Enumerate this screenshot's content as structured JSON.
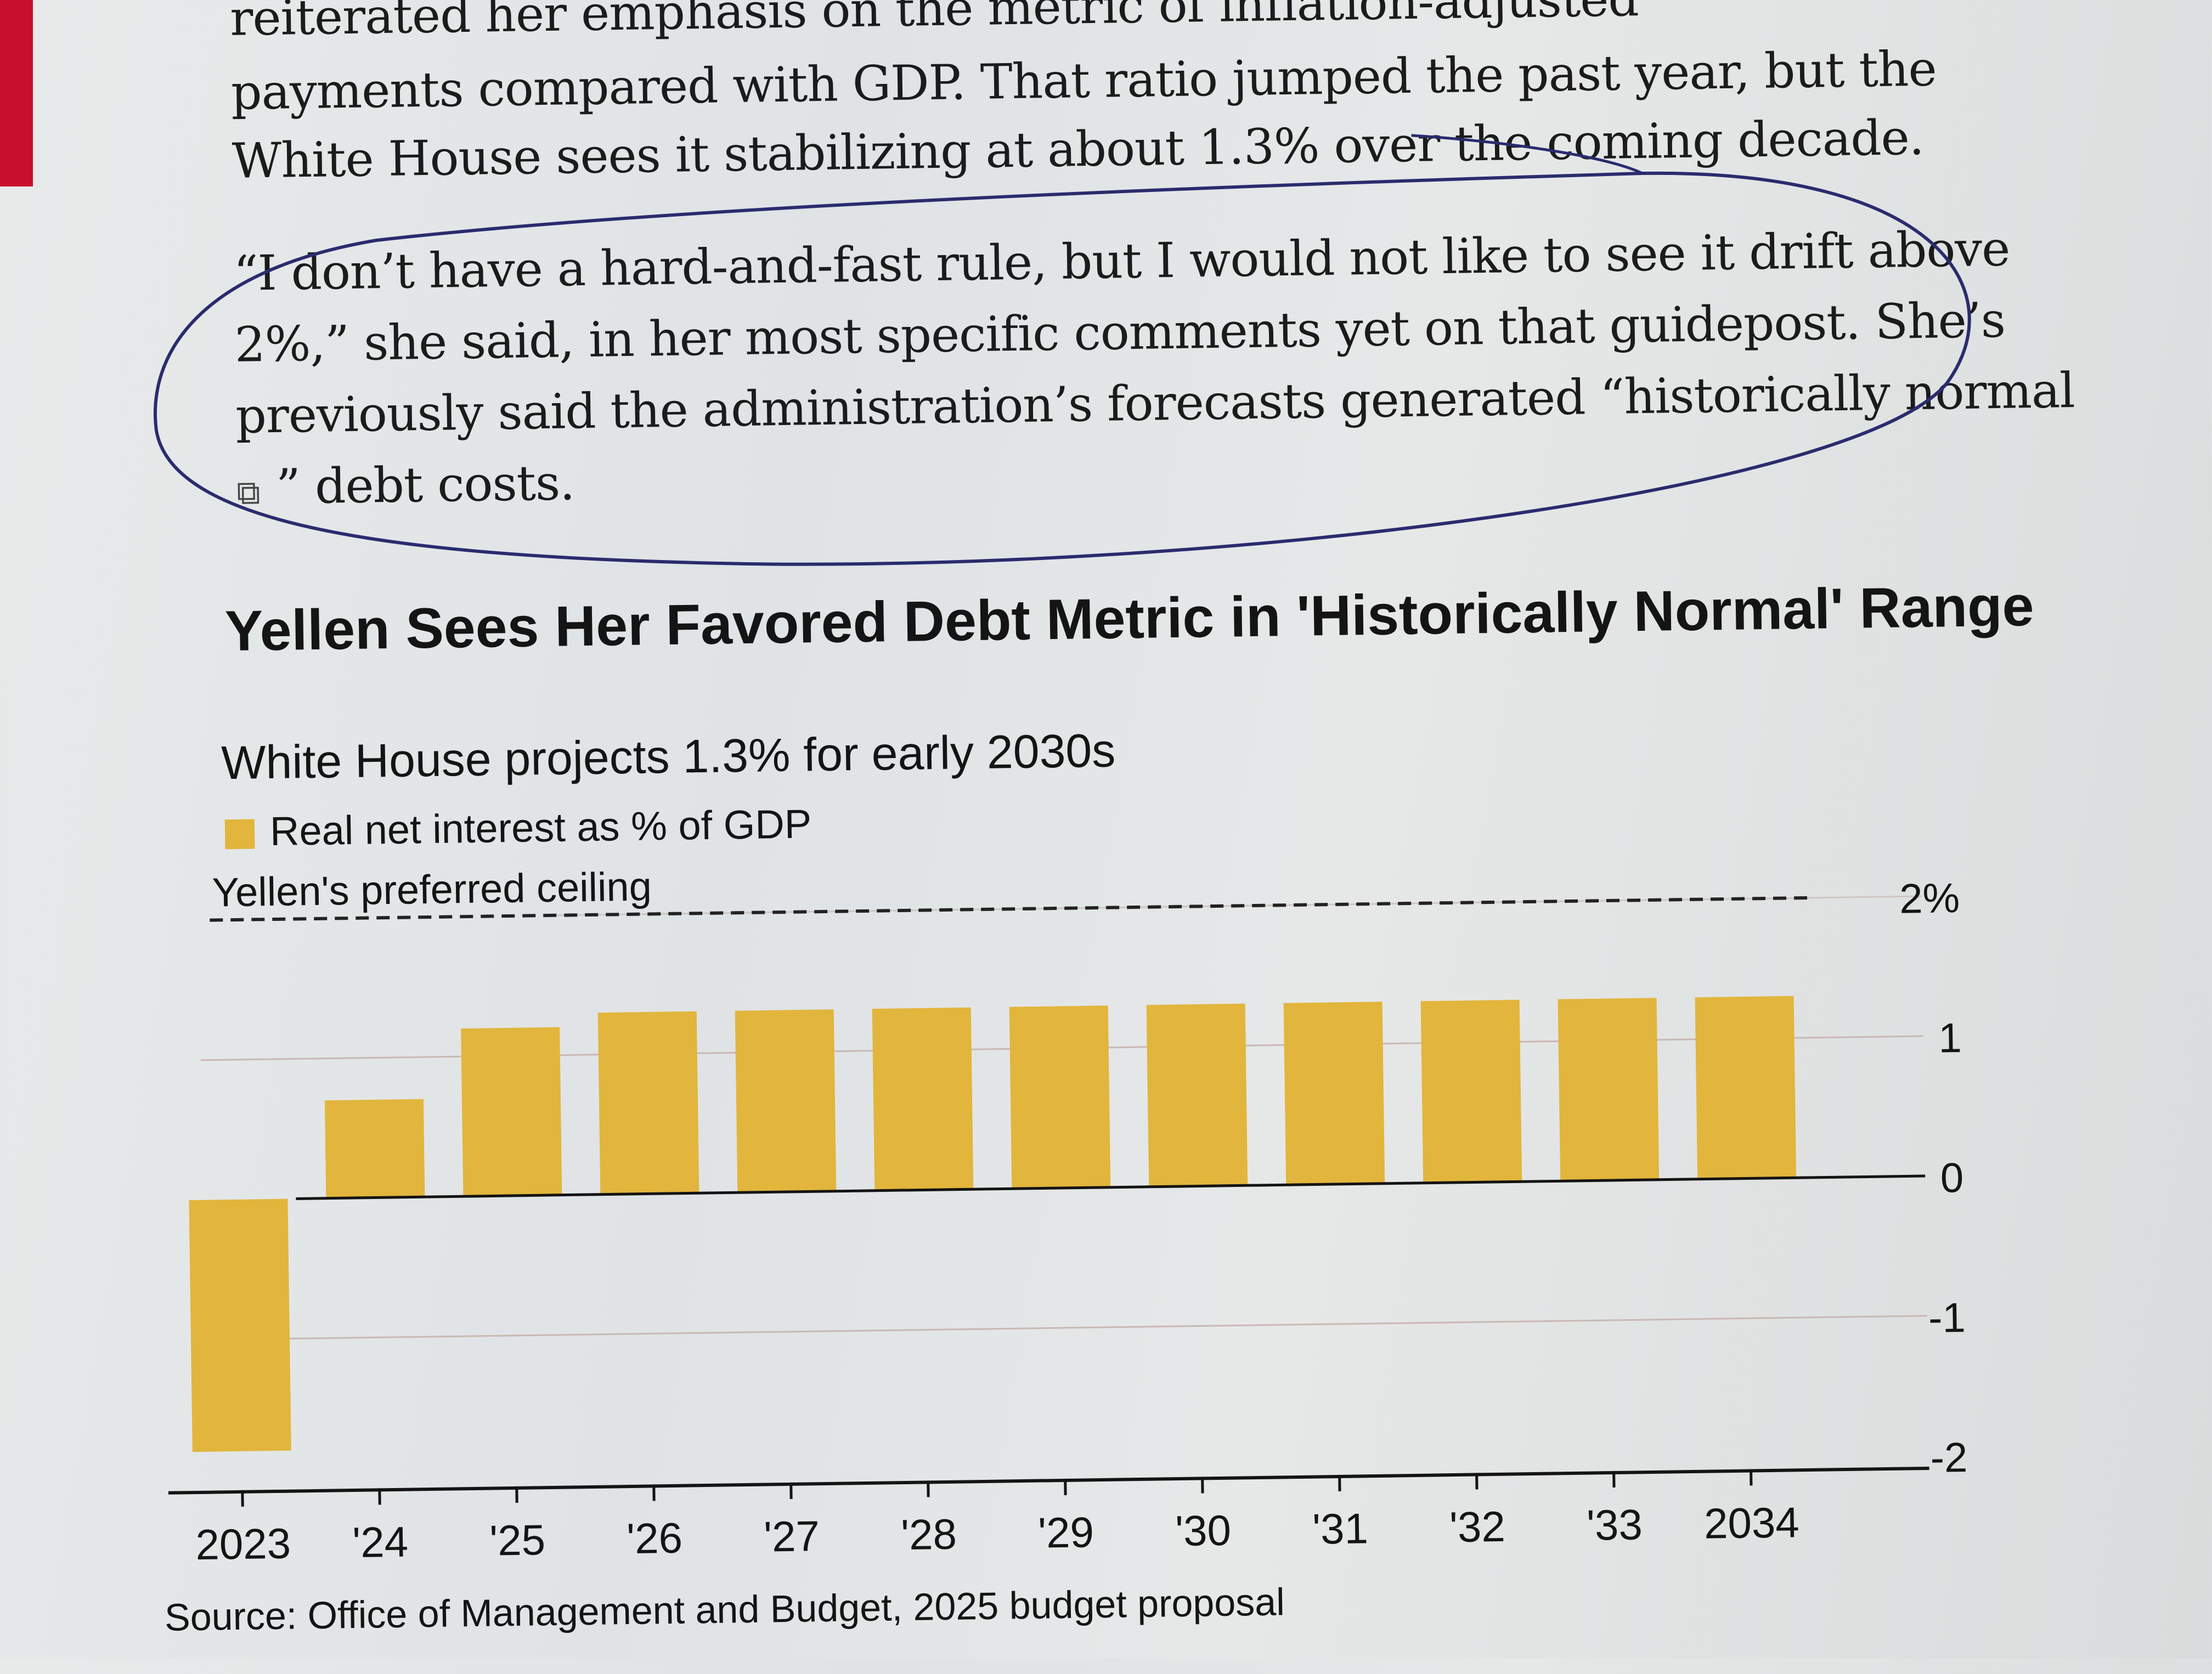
{
  "article": {
    "lines": [
      "reiterated her emphasis on the metric of inflation-adjusted",
      "payments compared with GDP. That ratio jumped the past year, but the",
      "White House sees it stabilizing at about 1.3% over the coming decade.",
      "“I don’t have a hard-and-fast rule, but I would not like to see it drift above",
      "2%,” she said, in her most specific comments yet on that guidepost. She’s",
      "previously said the administration’s forecasts generated “historically normal",
      "” debt costs."
    ]
  },
  "chart_data": {
    "type": "bar",
    "title": "Yellen Sees Her Favored Debt Metric in 'Historically Normal' Range",
    "subtitle": "White House projects 1.3% for early 2030s",
    "legend": "Real net interest as % of GDP",
    "reference_line": {
      "label": "Yellen's preferred ceiling",
      "value": 2,
      "style": "dashed"
    },
    "categories": [
      "2023",
      "'24",
      "'25",
      "'26",
      "'27",
      "'28",
      "'29",
      "'30",
      "'31",
      "'32",
      "'33",
      "2034"
    ],
    "values": [
      -1.8,
      0.7,
      1.2,
      1.3,
      1.3,
      1.3,
      1.3,
      1.3,
      1.3,
      1.3,
      1.3,
      1.3
    ],
    "y_ticks": [
      "2%",
      "1",
      "0",
      "-1",
      "-2"
    ],
    "ylim": [
      -2,
      2
    ],
    "grid": true,
    "source": "Source: Office of Management and Budget, 2025 budget proposal"
  },
  "colors": {
    "bar": "#e2b53c",
    "pen_circle": "#2a2c6e",
    "ink": "#141414"
  }
}
